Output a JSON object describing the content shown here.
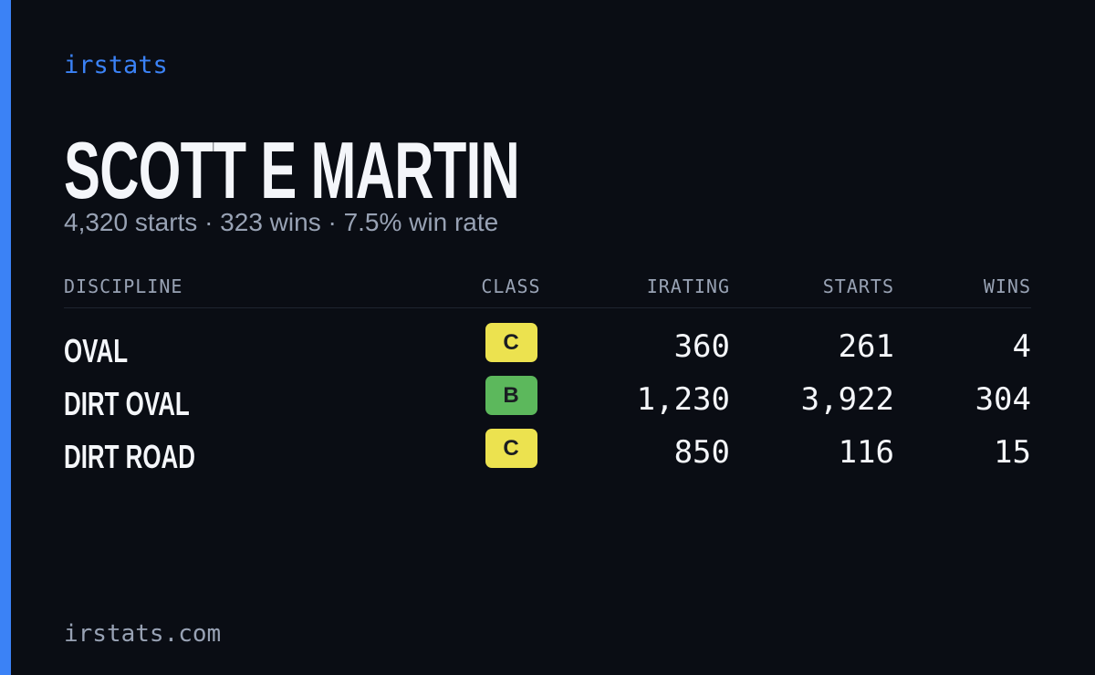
{
  "brand": "irstats",
  "driver": {
    "name": "SCOTT E MARTIN",
    "summary": "4,320 starts · 323 wins · 7.5% win rate"
  },
  "table": {
    "headers": [
      "DISCIPLINE",
      "CLASS",
      "IRATING",
      "STARTS",
      "WINS"
    ],
    "rows": [
      {
        "discipline": "OVAL",
        "class": "C",
        "class_color": "#ece24f",
        "irating": "360",
        "starts": "261",
        "wins": "4"
      },
      {
        "discipline": "DIRT OVAL",
        "class": "B",
        "class_color": "#5cb85c",
        "irating": "1,230",
        "starts": "3,922",
        "wins": "304"
      },
      {
        "discipline": "DIRT ROAD",
        "class": "C",
        "class_color": "#ece24f",
        "irating": "850",
        "starts": "116",
        "wins": "15"
      }
    ]
  },
  "footer": "irstats.com"
}
